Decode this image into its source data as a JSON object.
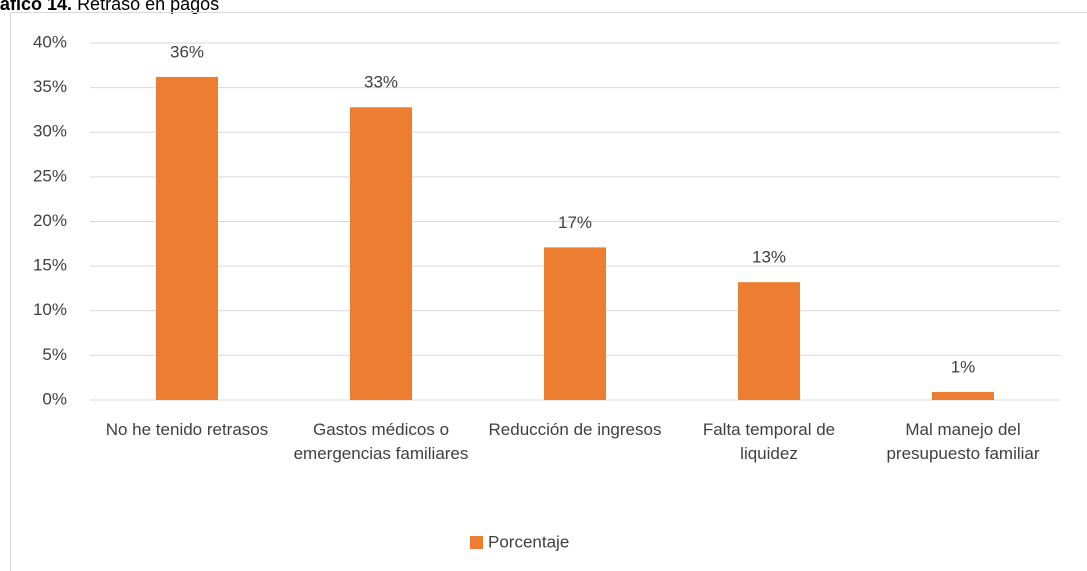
{
  "chart_data": {
    "type": "bar",
    "title_prefix": "áfico 14.",
    "title": "Retraso en pagos",
    "categories": [
      "No he tenido retrasos",
      "Gastos médicos o emergencias familiares",
      "Reducción de ingresos",
      "Falta temporal de liquidez",
      "Mal manejo del presupuesto familiar"
    ],
    "series": [
      {
        "name": "Porcentaje",
        "color": "#ed7d31",
        "values": [
          36.2,
          32.8,
          17.1,
          13.2,
          0.9
        ],
        "value_labels": [
          "36%",
          "33%",
          "17%",
          "13%",
          "1%"
        ]
      }
    ],
    "ylim": [
      0,
      40
    ],
    "yticks": [
      {
        "value": 0,
        "label": "0%"
      },
      {
        "value": 5,
        "label": "5%"
      },
      {
        "value": 10,
        "label": "10%"
      },
      {
        "value": 15,
        "label": "15%"
      },
      {
        "value": 20,
        "label": "20%"
      },
      {
        "value": 25,
        "label": "25%"
      },
      {
        "value": 30,
        "label": "30%"
      },
      {
        "value": 35,
        "label": "35%"
      },
      {
        "value": 40,
        "label": "40%"
      }
    ],
    "grid": true,
    "legend": "bottom"
  }
}
